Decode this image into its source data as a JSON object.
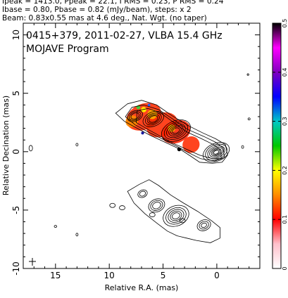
{
  "header": {
    "line1": "Ipeak = 1413.0, Ppeak = 22.1, I RMS = 0.23, P RMS = 0.24",
    "line2": "Ibase = 0.80, Pbase = 0.82 (mJy/beam), steps: x 2",
    "line3": "Beam: 0.83x0.55 mas at 4.6 deg., Nat. Wgt. (no taper)"
  },
  "panel": {
    "title_line1": "0415+379, 2011-02-27, VLBA 15.4 GHz",
    "title_line2": "MOJAVE Program"
  },
  "chart_data": {
    "type": "heatmap",
    "xlabel": "Relative R.A. (mas)",
    "ylabel": "Relative Decination (mas)",
    "xlim": [
      18,
      -4
    ],
    "ylim": [
      -10,
      11
    ],
    "x_ticks": [
      15,
      10,
      5,
      0
    ],
    "y_ticks": [
      10,
      5,
      0,
      -5,
      -10
    ],
    "colorbar": {
      "label": "",
      "range": [
        0,
        0.5
      ],
      "ticks": [
        0,
        0.1,
        0.2,
        0.3,
        0.4,
        0.5
      ],
      "colors": [
        "#ffffff",
        "#ffc0cb",
        "#ff0000",
        "#ff8c00",
        "#ffff00",
        "#00c800",
        "#00c8c8",
        "#0000ff",
        "#8000c0",
        "#ff00ff",
        "#000000"
      ]
    },
    "contour_levels_mJy_per_beam": [
      0.8,
      1.6,
      3.2,
      6.4,
      12.8,
      25.6,
      51.2,
      102.4,
      204.8,
      409.6,
      819.2
    ],
    "stokes_I_core": {
      "x": 0.0,
      "y": 0.0
    },
    "stokes_I_components": [
      {
        "x": 0.0,
        "y": 0.0
      },
      {
        "x": 1.8,
        "y": 1.0
      },
      {
        "x": 3.8,
        "y": 1.8
      },
      {
        "x": 5.8,
        "y": 2.8
      },
      {
        "x": 7.5,
        "y": 3.0
      }
    ],
    "pol_components": [
      {
        "x": 3.8,
        "y": 1.6,
        "frac_pol": 0.05
      },
      {
        "x": 6.0,
        "y": 3.0,
        "frac_pol": 0.07
      },
      {
        "x": 7.8,
        "y": 2.6,
        "frac_pol": 0.06
      },
      {
        "x": 2.5,
        "y": 0.5,
        "frac_pol": 0.07
      }
    ],
    "beam": {
      "major_mas": 0.83,
      "minor_mas": 0.55,
      "pa_deg": 4.6
    }
  }
}
